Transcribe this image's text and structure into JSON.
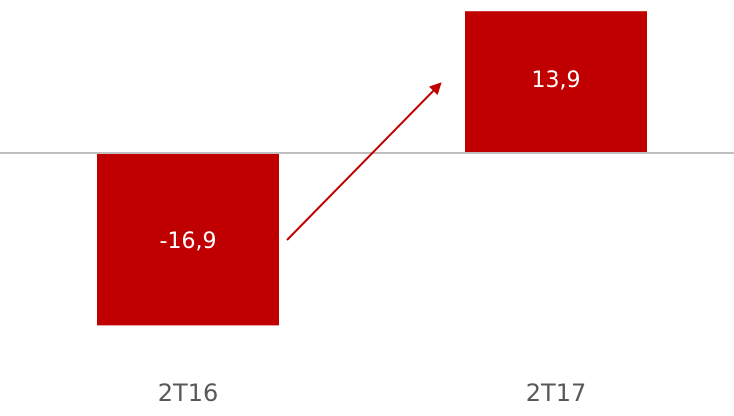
{
  "chart_data": {
    "type": "bar",
    "categories": [
      "2T16",
      "2T17"
    ],
    "values": [
      -16.9,
      13.9
    ],
    "value_labels": [
      "-16,9",
      "13,9"
    ],
    "color": "#c00000",
    "ylim": [
      -20,
      15
    ]
  }
}
